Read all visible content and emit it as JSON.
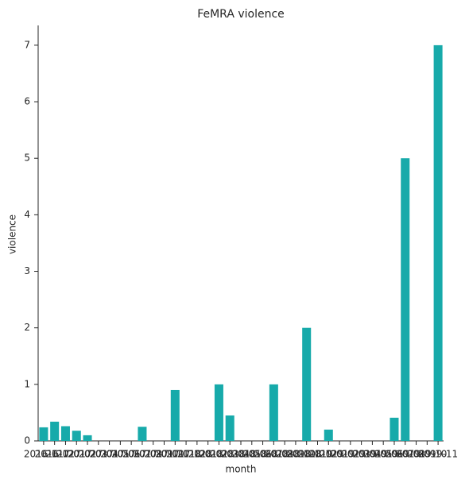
{
  "chart_data": {
    "type": "bar",
    "title": "FeMRA violence",
    "xlabel": "month",
    "ylabel": "violence",
    "categories": [
      "2016-11",
      "2016-12",
      "2017-01",
      "2017-02",
      "2017-03",
      "2017-04",
      "2017-05",
      "2017-06",
      "2017-07",
      "2017-08",
      "2017-09",
      "2017-10",
      "2017-11",
      "2017-12",
      "2018-01",
      "2018-02",
      "2018-03",
      "2018-04",
      "2018-05",
      "2018-06",
      "2018-07",
      "2018-08",
      "2018-09",
      "2018-10",
      "2018-11",
      "2018-12",
      "2019-01",
      "2019-02",
      "2019-03",
      "2019-04",
      "2019-05",
      "2019-06",
      "2019-07",
      "2019-08",
      "2019-09",
      "2019-10",
      "2019-11"
    ],
    "values": [
      0.24,
      0.34,
      0.26,
      0.18,
      0.1,
      0,
      0,
      0,
      0,
      0.25,
      0,
      0,
      0.9,
      0,
      0,
      0,
      1.0,
      0.45,
      0,
      0,
      0,
      1.0,
      0,
      0,
      2.0,
      0,
      0.2,
      0,
      0,
      0,
      0,
      0,
      0.41,
      5.0,
      0,
      0,
      7.0
    ],
    "color": "#17aaaa",
    "ylim": [
      0,
      7.35
    ],
    "yticks": [
      0,
      1,
      2,
      3,
      4,
      5,
      6,
      7
    ],
    "grid": false
  }
}
